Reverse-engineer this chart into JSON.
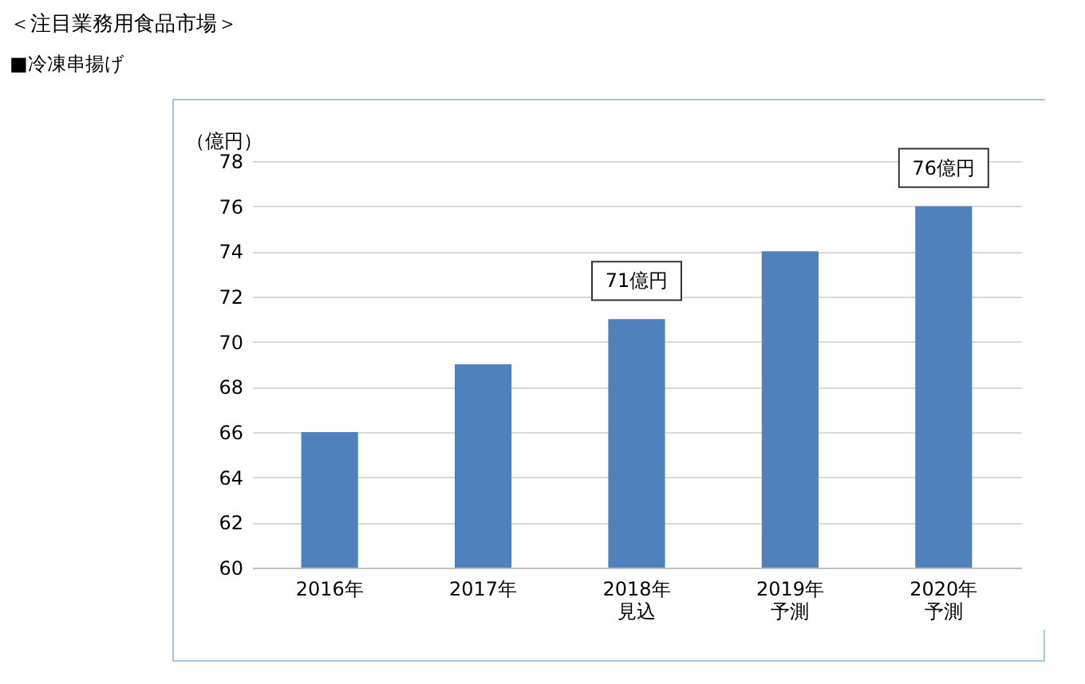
{
  "chart_data": {
    "type": "bar",
    "title": "＜注目業務用食品市場＞",
    "subtitle": "■冷凍串揚げ",
    "ylabel": "（億円）",
    "categories": [
      "2016年",
      "2017年",
      "2018年見込",
      "2019年予測",
      "2020年予測"
    ],
    "values": [
      66,
      69,
      71,
      74,
      76
    ],
    "color": "#4f81bd",
    "ylim": [
      60,
      78
    ],
    "yticks": [
      60,
      62,
      64,
      66,
      68,
      70,
      72,
      74,
      76,
      78
    ],
    "grid": "y",
    "annotations": [
      {
        "text": "71億円",
        "x": "2018年見込",
        "y": 71
      },
      {
        "text": "76億円",
        "x": "2020年予測",
        "y": 76
      }
    ]
  }
}
